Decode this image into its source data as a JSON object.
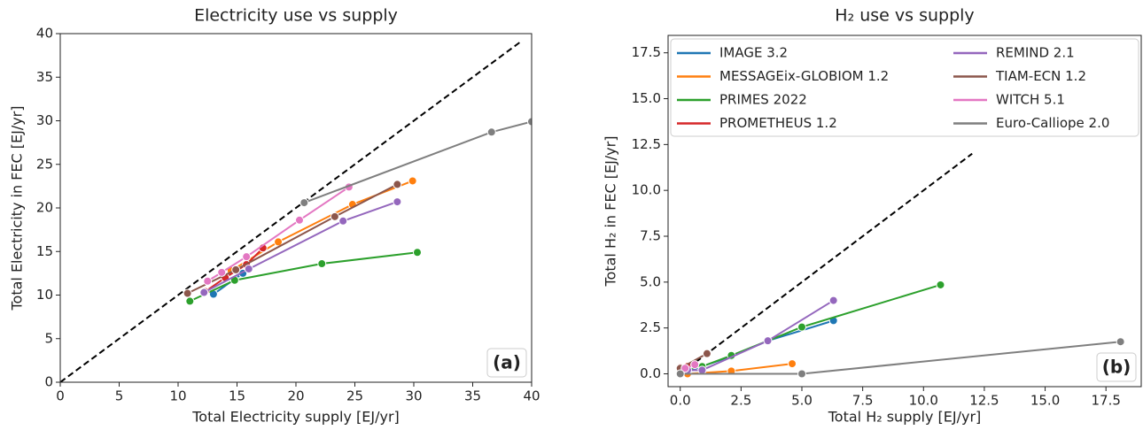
{
  "chart_data": [
    {
      "type": "line",
      "title": "Electricity use vs supply",
      "x_label": "Total Electricity supply [EJ/yr]",
      "y_label": "Total Electricity in FEC [EJ/yr]",
      "panel_label": "(a)",
      "xlim": [
        0,
        40
      ],
      "ylim": [
        0,
        40
      ],
      "xticks": [
        0,
        5,
        10,
        15,
        20,
        25,
        30,
        35,
        40
      ],
      "yticks": [
        0,
        5,
        10,
        15,
        20,
        25,
        30,
        35,
        40
      ],
      "reference_line": {
        "x": [
          0,
          39
        ],
        "y": [
          0,
          39
        ]
      },
      "series": [
        {
          "color": "#1f77b4",
          "x": [
            13.0,
            15.5
          ],
          "values": [
            10.1,
            12.5
          ]
        },
        {
          "color": "#ff7f0e",
          "x": [
            14.5,
            18.5,
            24.8,
            29.9
          ],
          "values": [
            12.8,
            16.1,
            20.4,
            23.1
          ]
        },
        {
          "color": "#2ca02c",
          "x": [
            11.0,
            14.8,
            22.2,
            30.3
          ],
          "values": [
            9.3,
            11.7,
            13.6,
            14.9
          ]
        },
        {
          "color": "#d62728",
          "x": [
            12.3,
            14.0,
            15.8,
            17.2
          ],
          "values": [
            10.4,
            12.0,
            13.5,
            15.4
          ]
        },
        {
          "color": "#9467bd",
          "x": [
            12.2,
            16.0,
            24.0,
            28.6
          ],
          "values": [
            10.3,
            13.0,
            18.5,
            20.7
          ]
        },
        {
          "color": "#8c564b",
          "x": [
            10.8,
            14.9,
            23.3,
            28.6
          ],
          "values": [
            10.2,
            12.9,
            19.0,
            22.7
          ]
        },
        {
          "color": "#e377c2",
          "x": [
            12.5,
            13.7,
            15.8,
            20.3,
            24.5
          ],
          "values": [
            11.6,
            12.6,
            14.4,
            18.6,
            22.4
          ]
        },
        {
          "color": "#7f7f7f",
          "x": [
            20.7,
            36.6,
            40.0
          ],
          "values": [
            20.6,
            28.7,
            29.9
          ]
        }
      ]
    },
    {
      "type": "line",
      "title": "H₂ use vs supply",
      "x_label": "Total H₂ supply [EJ/yr]",
      "y_label": "Total H₂ in FEC [EJ/yr]",
      "panel_label": "(b)",
      "xlim": [
        -0.5,
        18.95
      ],
      "ylim": [
        -0.7,
        18.45
      ],
      "xticks": [
        {
          "value": 0,
          "label": "0.0"
        },
        {
          "value": 2.5,
          "label": "2.5"
        },
        {
          "value": 5,
          "label": "5.0"
        },
        {
          "value": 7.5,
          "label": "7.5"
        },
        {
          "value": 10,
          "label": "10.0"
        },
        {
          "value": 12.5,
          "label": "12.5"
        },
        {
          "value": 15,
          "label": "15.0"
        },
        {
          "value": 17.5,
          "label": "17.5"
        }
      ],
      "yticks": [
        {
          "value": 0,
          "label": "0.0"
        },
        {
          "value": 2.5,
          "label": "2.5"
        },
        {
          "value": 5,
          "label": "5.0"
        },
        {
          "value": 7.5,
          "label": "7.5"
        },
        {
          "value": 10,
          "label": "10.0"
        },
        {
          "value": 12.5,
          "label": "12.5"
        },
        {
          "value": 15,
          "label": "15.0"
        },
        {
          "value": 17.5,
          "label": "17.5"
        }
      ],
      "reference_line": {
        "x": [
          0,
          12
        ],
        "y": [
          0,
          12
        ]
      },
      "legend": "upper left",
      "series": [
        {
          "name": "IMAGE 3.2",
          "color": "#1f77b4",
          "x": [
            0,
            2.1,
            3.6,
            6.3
          ],
          "values": [
            0,
            0.95,
            1.8,
            2.9
          ]
        },
        {
          "name": "MESSAGEix-GLOBIOM 1.2",
          "color": "#ff7f0e",
          "x": [
            0.3,
            2.1,
            4.6
          ],
          "values": [
            0,
            0.15,
            0.55
          ]
        },
        {
          "name": "PRIMES 2022",
          "color": "#2ca02c",
          "x": [
            0.1,
            0.9,
            2.1,
            5.0,
            10.7
          ],
          "values": [
            0.2,
            0.4,
            1.0,
            2.55,
            4.85
          ]
        },
        {
          "name": "PROMETHEUS 1.2",
          "color": "#d62728",
          "x": [
            0,
            0.3
          ],
          "values": [
            0.35,
            0.4
          ]
        },
        {
          "name": "REMIND 2.1",
          "color": "#9467bd",
          "x": [
            0.3,
            0.9,
            3.6,
            6.3
          ],
          "values": [
            0.2,
            0.2,
            1.8,
            4.0
          ]
        },
        {
          "name": "TIAM-ECN 1.2",
          "color": "#8c564b",
          "x": [
            0,
            1.1
          ],
          "values": [
            0.3,
            1.1
          ]
        },
        {
          "name": "WITCH 5.1",
          "color": "#e377c2",
          "x": [
            0.2,
            0.6
          ],
          "values": [
            0.3,
            0.5
          ]
        },
        {
          "name": "Euro-Calliope 2.0",
          "color": "#7f7f7f",
          "x": [
            0,
            5.0,
            18.1
          ],
          "values": [
            0,
            0,
            1.75
          ]
        }
      ]
    }
  ]
}
